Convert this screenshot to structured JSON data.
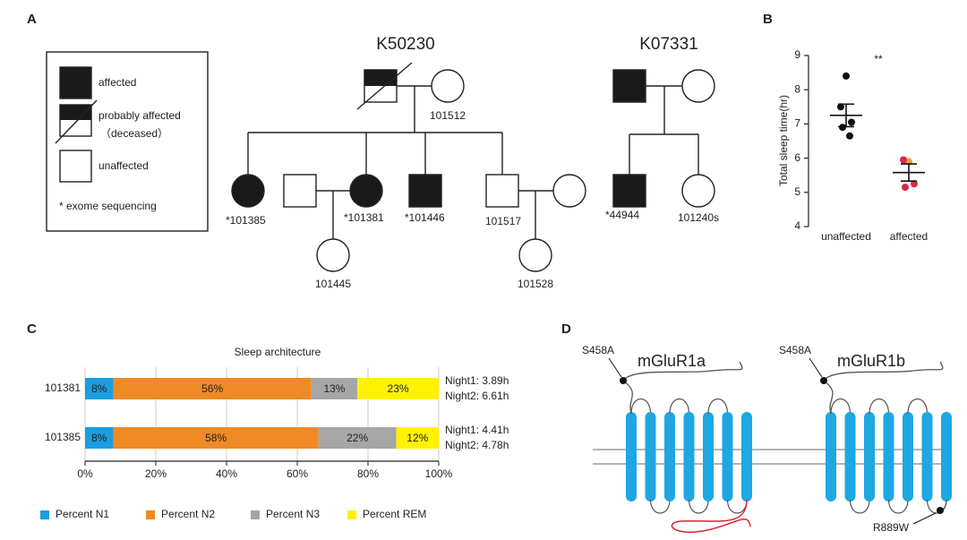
{
  "panel_labels": [
    "A",
    "B",
    "C",
    "D"
  ],
  "pedigree": {
    "legend": [
      "affected",
      "probably affected",
      "（deceased）",
      "unaffected",
      "* exome sequencing"
    ],
    "families": [
      {
        "name": "K50230",
        "color": "#e8202a",
        "individuals": [
          "101512",
          "*101385",
          "*101381",
          "*101446",
          "101517",
          "101445",
          "101528"
        ]
      },
      {
        "name": "K07331",
        "color": "#f0a43a",
        "individuals": [
          "*44944",
          "101240s"
        ]
      }
    ]
  },
  "chart_data": [
    {
      "type": "scatter",
      "ylabel": "Total sleep time(hr)",
      "annotation": "**",
      "categories": [
        "unaffected",
        "affected"
      ],
      "groups": [
        {
          "values": [
            8.4,
            7.5,
            7.05,
            6.9,
            6.65
          ],
          "point_colors": [
            "#111111",
            "#111111",
            "#111111",
            "#111111",
            "#111111"
          ],
          "mean": 7.25,
          "sem": 0.33
        },
        {
          "values": [
            5.9,
            5.95,
            5.25,
            5.15
          ],
          "point_colors": [
            "#e8a23a",
            "#d8284a",
            "#d8284a",
            "#d8284a"
          ],
          "mean": 5.58,
          "sem": 0.25
        }
      ],
      "ylim": [
        4,
        9
      ],
      "yticks": [
        4,
        5,
        6,
        7,
        8,
        9
      ]
    },
    {
      "type": "stacked_barh",
      "title": "Sleep architecture",
      "categories": [
        "101381",
        "101385"
      ],
      "series": [
        {
          "name": "Percent N1",
          "color": "#1a9ee0",
          "values": [
            8,
            8
          ],
          "value_labels": [
            "8%",
            "8%"
          ]
        },
        {
          "name": "Percent N2",
          "color": "#f08a24",
          "values": [
            56,
            58
          ],
          "value_labels": [
            "56%",
            "58%"
          ]
        },
        {
          "name": "Percent N3",
          "color": "#a6a6a6",
          "values": [
            13,
            22
          ],
          "value_labels": [
            "13%",
            "22%"
          ]
        },
        {
          "name": "Percent REM",
          "color": "#fff200",
          "values": [
            23,
            12
          ],
          "value_labels": [
            "23%",
            "12%"
          ]
        }
      ],
      "annotations": [
        [
          "Night1: 3.89h",
          "Night2: 6.61h"
        ],
        [
          "Night1: 4.41h",
          "Night2: 4.78h"
        ]
      ],
      "xlim": [
        0,
        100
      ],
      "xticks": [
        {
          "value": 0,
          "label": "0%"
        },
        {
          "value": 20,
          "label": "20%"
        },
        {
          "value": 40,
          "label": "40%"
        },
        {
          "value": 60,
          "label": "60%"
        },
        {
          "value": 80,
          "label": "80%"
        },
        {
          "value": 100,
          "label": "100%"
        }
      ],
      "grid": true,
      "legend": "bottom"
    }
  ],
  "protein": {
    "receptors": [
      {
        "name": "mGluR1a",
        "site": "S458A"
      },
      {
        "name": "mGluR1b",
        "site": "S458A",
        "variant": "R889W"
      }
    ]
  }
}
